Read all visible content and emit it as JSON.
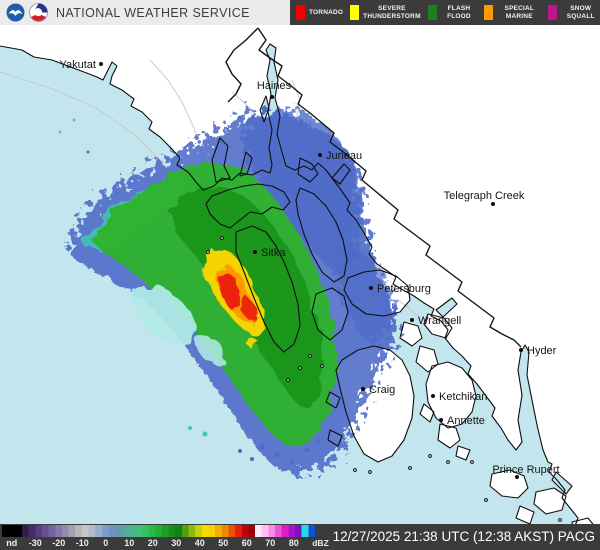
{
  "header": {
    "agency": "NATIONAL WEATHER SERVICE"
  },
  "legend": {
    "items": [
      {
        "label": "TORNADO",
        "color": "#f40000"
      },
      {
        "label": "SEVERE THUNDERSTORM",
        "color": "#ffff00"
      },
      {
        "label": "FLASH FLOOD",
        "color": "#1e7f1e"
      },
      {
        "label": "SPECIAL MARINE",
        "color": "#ff9b00"
      },
      {
        "label": "SNOW SQUALL",
        "color": "#c0148c"
      }
    ]
  },
  "map": {
    "cities": [
      {
        "name": "Yakutat"
      },
      {
        "name": "Haines"
      },
      {
        "name": "Juneau"
      },
      {
        "name": "Telegraph Creek"
      },
      {
        "name": "Sitka"
      },
      {
        "name": "Petersburg"
      },
      {
        "name": "Wrangell"
      },
      {
        "name": "Hyder"
      },
      {
        "name": "Craig"
      },
      {
        "name": "Ketchikan"
      },
      {
        "name": "Annette"
      },
      {
        "name": "Prince Rupert"
      }
    ],
    "colors": {
      "water": "#c3e5ee",
      "land": "#ffffff",
      "radar_fringe_blue": "#4e6bc8",
      "radar_teal": "#43c4b4",
      "radar_green": "#2db32d",
      "radar_dark_green": "#129212",
      "radar_light_cyan": "#b2ebe8",
      "radar_yellow": "#ffd800",
      "radar_orange": "#ff9400",
      "radar_red": "#ea1a10"
    }
  },
  "colorbar": {
    "ticks": [
      "nd",
      "-30",
      "-20",
      "-10",
      "0",
      "10",
      "20",
      "30",
      "40",
      "50",
      "60",
      "70",
      "80"
    ],
    "unit": "dBZ",
    "gradient": [
      "#000000",
      "#000000",
      "#000000",
      "#301c48",
      "#452c68",
      "#573e82",
      "#665092",
      "#75649d",
      "#8478a6",
      "#928cae",
      "#a4a0b4",
      "#b8b8ba",
      "#c6c6c6",
      "#b0bac8",
      "#98abc9",
      "#7f9cc9",
      "#6f94bd",
      "#6399ab",
      "#56a89e",
      "#4ab690",
      "#3fc07c",
      "#35c160",
      "#2bb949",
      "#23ad35",
      "#1c9f28",
      "#15901c",
      "#108513",
      "#4f9e0e",
      "#8dba09",
      "#c8d004",
      "#efdf01",
      "#f8d200",
      "#f3ad00",
      "#ee8800",
      "#e95200",
      "#e51e0e",
      "#c4000e",
      "#99000a",
      "#ffe6f7",
      "#ffbff0",
      "#fb8ce4",
      "#ee54d8",
      "#d91fc8",
      "#a813c9",
      "#7f12c0",
      "#22dcec",
      "#0f52d0"
    ]
  },
  "status": {
    "timestamp": "12/27/2025 21:38 UTC (12:38 AKST) PACG"
  }
}
